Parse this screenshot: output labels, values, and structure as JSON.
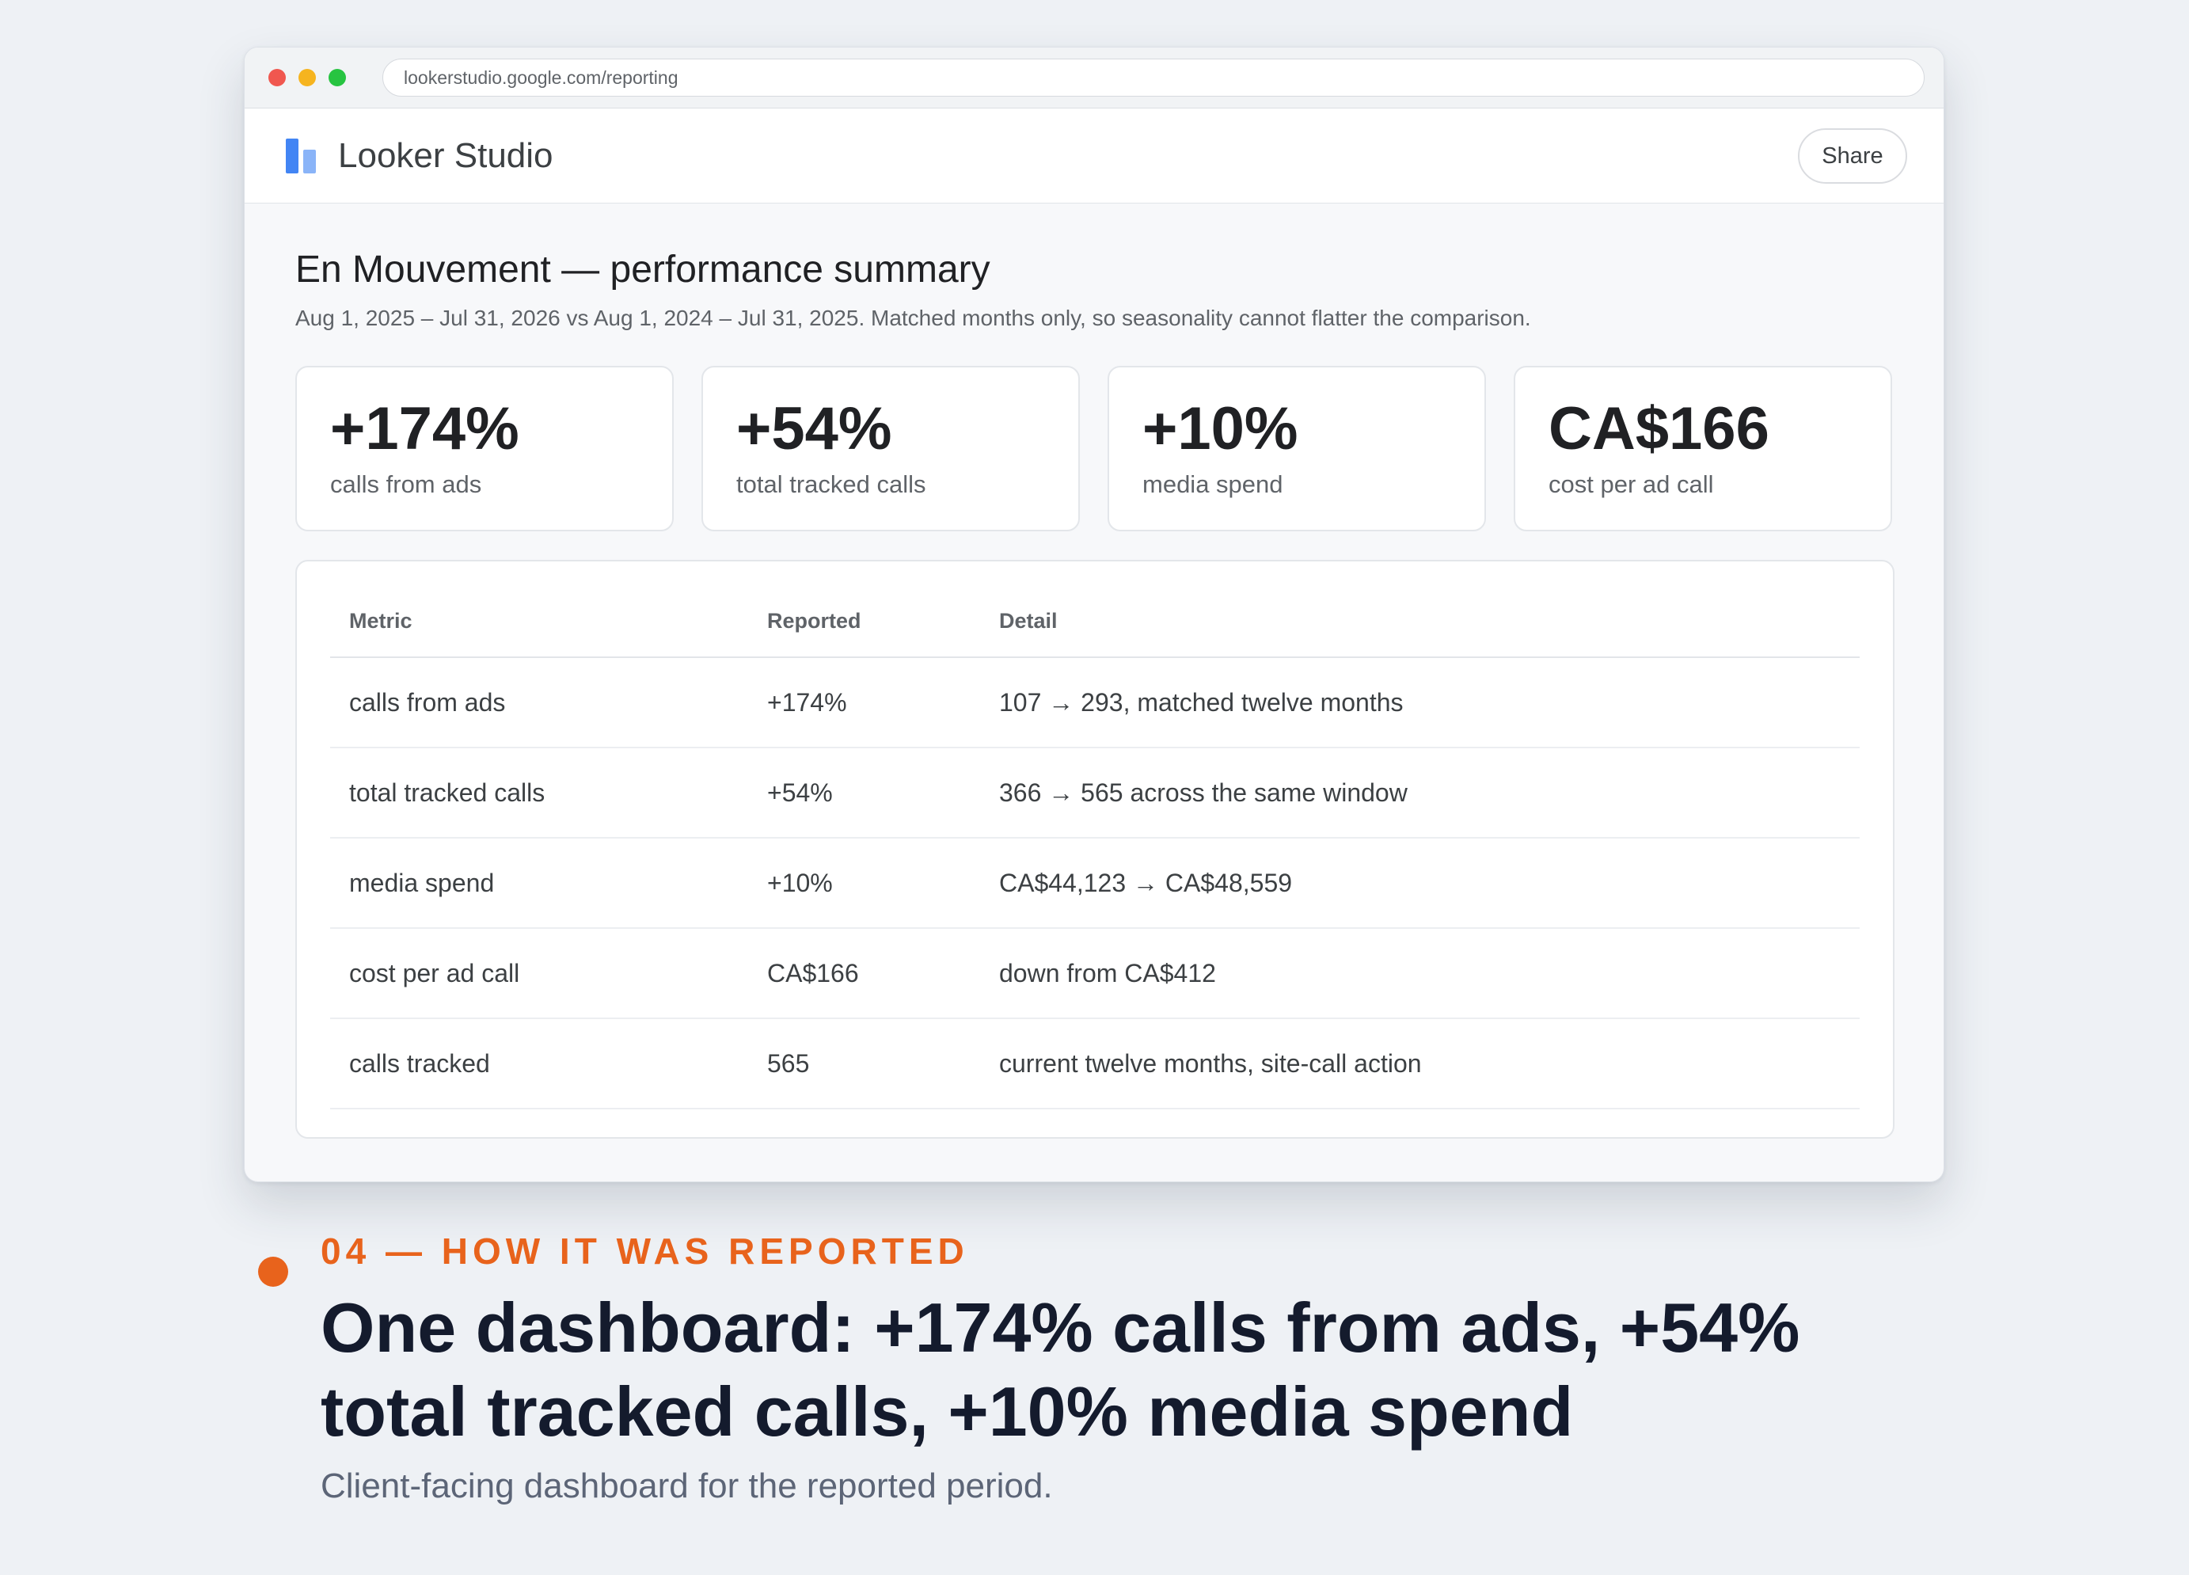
{
  "browser": {
    "url": "lookerstudio.google.com/reporting"
  },
  "app": {
    "name": "Looker Studio",
    "share_label": "Share"
  },
  "report": {
    "title": "En Mouvement — performance summary",
    "subtitle": "Aug 1, 2025 – Jul 31, 2026 vs Aug 1, 2024 – Jul 31, 2025. Matched months only, so seasonality cannot flatter the comparison."
  },
  "kpis": [
    {
      "value": "+174%",
      "label": "calls from ads"
    },
    {
      "value": "+54%",
      "label": "total tracked calls"
    },
    {
      "value": "+10%",
      "label": "media spend"
    },
    {
      "value": "CA$166",
      "label": "cost per ad call"
    }
  ],
  "table": {
    "headers": [
      "Metric",
      "Reported",
      "Detail"
    ],
    "rows": [
      [
        "calls from ads",
        "+174%",
        "107 → 293, matched twelve months"
      ],
      [
        "total tracked calls",
        "+54%",
        "366 → 565 across the same window"
      ],
      [
        "media spend",
        "+10%",
        "CA$44,123 → CA$48,559"
      ],
      [
        "cost per ad call",
        "CA$166",
        "down from CA$412"
      ],
      [
        "calls tracked",
        "565",
        "current twelve months, site-call action"
      ]
    ]
  },
  "caption": {
    "kicker": "04 — HOW IT WAS REPORTED",
    "headline": "One dashboard: +174% calls from ads, +54% total tracked calls, +10% media spend",
    "subline": "Client-facing dashboard for the reported period."
  },
  "colors": {
    "accent": "#e8631c",
    "headline": "#141b2d",
    "logo_blue": "#4285f4"
  }
}
